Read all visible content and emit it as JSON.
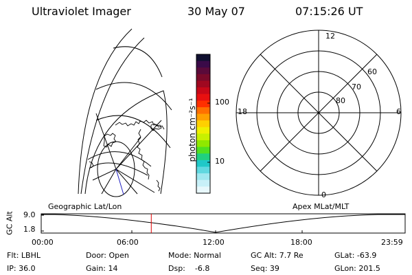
{
  "header": {
    "instrument": "Ultraviolet Imager",
    "date": "30 May 07",
    "time": "07:15:26 UT"
  },
  "colorbar": {
    "unit_label": "photon cm⁻²s⁻¹",
    "ticks": [
      "100",
      "10"
    ],
    "colors": [
      "#101030",
      "#3a0a48",
      "#5a0a3a",
      "#7a0a2a",
      "#a00820",
      "#c80818",
      "#e81010",
      "#ff3000",
      "#ff7000",
      "#ffa000",
      "#ffd000",
      "#f0f000",
      "#c8f000",
      "#90e800",
      "#50e020",
      "#20d080",
      "#20c8c8",
      "#60d8e0",
      "#a0e8f0",
      "#c8f0f8",
      "#e8f8fc"
    ]
  },
  "polar_plot": {
    "mlt_labels": {
      "top": "12",
      "left": "18",
      "right": "6",
      "bottom": "0"
    },
    "lat_labels": [
      "60",
      "70",
      "80"
    ]
  },
  "map_labels": {
    "geographic": "Geographic Lat/Lon",
    "apex": "Apex MLat/MLT"
  },
  "altitude_strip": {
    "axis_label": "GC Alt",
    "y_ticks": [
      "9.0",
      "1.8"
    ],
    "x_ticks": [
      "00:00",
      "06:00",
      "12:00",
      "18:00",
      "23:59"
    ],
    "current_time_hours": 7.26,
    "marker_color": "#e00000"
  },
  "info": {
    "filter": "Flt: LBHL",
    "door": "Door: Open",
    "mode": "Mode: Normal",
    "gc_alt": "GC Alt: 7.7 Re",
    "glat": "GLat: -63.9",
    "ip": "IP: 36.0",
    "gain": "Gain: 14",
    "dsp": "Dsp:    -6.8",
    "seq": "Seq: 39",
    "glon": "GLon: 201.5"
  }
}
